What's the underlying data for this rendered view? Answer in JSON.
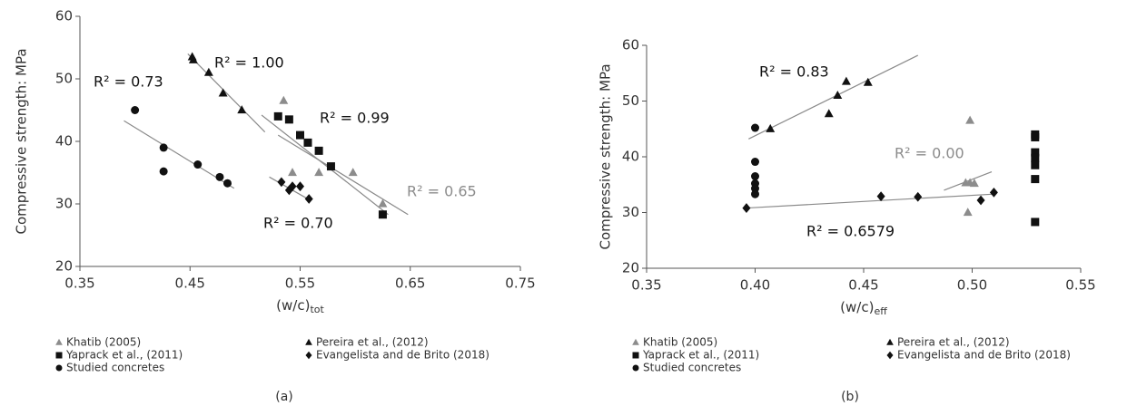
{
  "chart_data": [
    {
      "type": "scatter",
      "y_label": "Compressive strength: MPa",
      "x_label": "(w/c)",
      "x_label_sub": "tot",
      "caption": "(a)",
      "xlim": [
        0.35,
        0.75
      ],
      "xticks": [
        0.35,
        0.45,
        0.55,
        0.65,
        0.75
      ],
      "ylim": [
        20,
        60
      ],
      "yticks": [
        20,
        30,
        40,
        50,
        60
      ],
      "grid": false,
      "series": [
        {
          "name": "Khatib (2005)",
          "color": "#8c8c8c",
          "marker": "triangle",
          "x": [
            0.535,
            0.543,
            0.567,
            0.598,
            0.625
          ],
          "values": [
            46.5,
            35,
            35,
            35,
            30
          ],
          "trend": {
            "x": [
              0.53,
              0.648
            ],
            "y": [
              41,
              28.3
            ]
          },
          "fit_label": "R² = 0.65"
        },
        {
          "name": "Pereira et al., (2012)",
          "color": "#111111",
          "marker": "triangle",
          "x": [
            0.452,
            0.453,
            0.467,
            0.48,
            0.497
          ],
          "values": [
            53.5,
            53,
            51,
            47.7,
            45
          ],
          "trend": {
            "x": [
              0.448,
              0.518
            ],
            "y": [
              54,
              41.5
            ]
          },
          "fit_label": "R² = 1.00"
        },
        {
          "name": "Yaprack et al., (2011)",
          "color": "#111111",
          "marker": "square",
          "x": [
            0.53,
            0.54,
            0.55,
            0.557,
            0.567,
            0.578,
            0.625
          ],
          "values": [
            44,
            43.5,
            41,
            39.8,
            38.5,
            36,
            28.3
          ],
          "trend": {
            "x": [
              0.515,
              0.63
            ],
            "y": [
              44.2,
              28.3
            ]
          },
          "fit_label": "R² = 0.99"
        },
        {
          "name": "Evangelista and de Brito (2018)",
          "color": "#111111",
          "marker": "diamond",
          "x": [
            0.533,
            0.54,
            0.543,
            0.55,
            0.558
          ],
          "values": [
            33.5,
            32.2,
            32.8,
            32.8,
            30.8
          ],
          "trend": {
            "x": [
              0.522,
              0.56
            ],
            "y": [
              34.3,
              30.5
            ]
          },
          "fit_label": "R² = 0.70"
        },
        {
          "name": "Studied concretes",
          "color": "#111111",
          "marker": "circle",
          "x": [
            0.4,
            0.426,
            0.426,
            0.457,
            0.477,
            0.484
          ],
          "values": [
            45,
            39,
            35.2,
            36.3,
            34.3,
            33.3
          ],
          "trend": {
            "x": [
              0.39,
              0.49
            ],
            "y": [
              43.3,
              32.5
            ]
          },
          "fit_label": "R² = 0.73"
        }
      ]
    },
    {
      "type": "scatter",
      "y_label": "Compressive strength: MPa",
      "x_label": "(w/c)",
      "x_label_sub": "eff",
      "caption": "(b)",
      "xlim": [
        0.35,
        0.55
      ],
      "xticks": [
        0.35,
        {
          "value": 0.4,
          "label": "0.40"
        },
        0.45,
        {
          "value": 0.5,
          "label": "0.50"
        },
        0.55
      ],
      "ylim": [
        20,
        60
      ],
      "yticks": [
        20,
        30,
        40,
        50,
        60
      ],
      "grid": false,
      "series": [
        {
          "name": "Khatib (2005)",
          "color": "#8c8c8c",
          "marker": "triangle",
          "x": [
            0.497,
            0.499,
            0.501,
            0.498,
            0.499
          ],
          "values": [
            35.3,
            35.3,
            35.2,
            30,
            46.5
          ],
          "trend": {
            "x": [
              0.487,
              0.509
            ],
            "y": [
              34,
              37.3
            ]
          },
          "fit_label": "R² = 0.00"
        },
        {
          "name": "Pereira et al., (2012)",
          "color": "#111111",
          "marker": "triangle",
          "x": [
            0.407,
            0.434,
            0.438,
            0.442,
            0.452
          ],
          "values": [
            45,
            47.7,
            51,
            53.5,
            53.3
          ],
          "trend": {
            "x": [
              0.397,
              0.475
            ],
            "y": [
              43.2,
              58.2
            ]
          },
          "fit_label": "R² = 0.83"
        },
        {
          "name": "Yaprack et al., (2011)",
          "color": "#111111",
          "marker": "square",
          "x": [
            0.529,
            0.529,
            0.529,
            0.529,
            0.529,
            0.529,
            0.529
          ],
          "values": [
            44,
            43.5,
            40.8,
            39.8,
            38.5,
            36,
            28.3
          ]
        },
        {
          "name": "Evangelista and de Brito (2018)",
          "color": "#111111",
          "marker": "diamond",
          "x": [
            0.396,
            0.458,
            0.475,
            0.504,
            0.51
          ],
          "values": [
            30.8,
            32.9,
            32.8,
            32.2,
            33.6
          ],
          "trend": {
            "x": [
              0.396,
              0.51
            ],
            "y": [
              30.8,
              33.3
            ]
          },
          "fit_label": "R² = 0.6579"
        },
        {
          "name": "Studied concretes",
          "color": "#111111",
          "marker": "circle",
          "x": [
            0.4,
            0.4,
            0.4,
            0.4,
            0.4,
            0.4
          ],
          "values": [
            45.2,
            39.1,
            36.5,
            35.2,
            34.3,
            33.3
          ]
        }
      ]
    }
  ]
}
